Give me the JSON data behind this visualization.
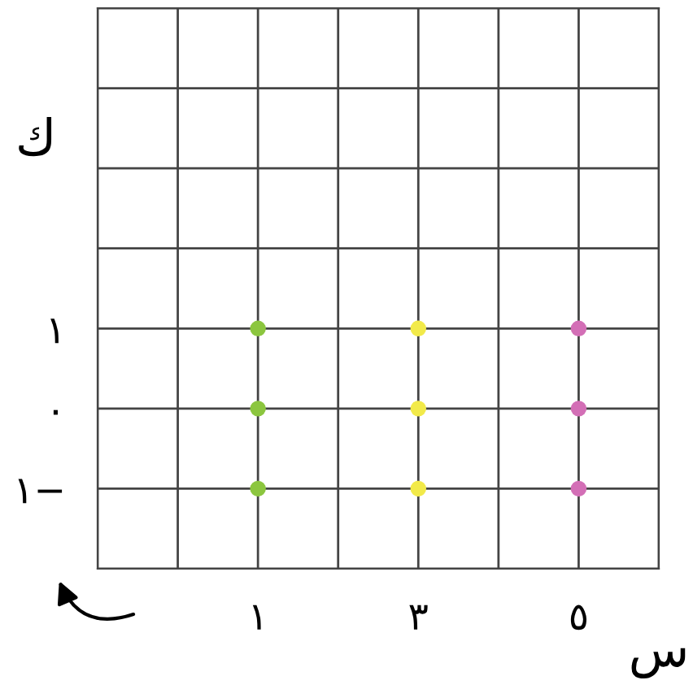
{
  "chart_data": {
    "type": "scatter",
    "xlabel": "س",
    "ylabel": "ك",
    "series": [
      {
        "color": "#8cc63f",
        "x": [
          1,
          1,
          1
        ],
        "values": [
          1,
          0,
          -1
        ]
      },
      {
        "color": "#f2ea4a",
        "x": [
          3,
          3,
          3
        ],
        "values": [
          1,
          0,
          -1
        ]
      },
      {
        "color": "#d36fb6",
        "x": [
          5,
          5,
          5
        ],
        "values": [
          1,
          0,
          -1
        ]
      }
    ],
    "xlim": [
      -1,
      6
    ],
    "ylim": [
      -2,
      5
    ],
    "xticks": [
      {
        "value": -1,
        "label": null
      },
      {
        "value": 0,
        "label": null
      },
      {
        "value": 1,
        "label": "١"
      },
      {
        "value": 2,
        "label": null
      },
      {
        "value": 3,
        "label": "٣"
      },
      {
        "value": 4,
        "label": null
      },
      {
        "value": 5,
        "label": "٥"
      },
      {
        "value": 6,
        "label": null
      }
    ],
    "yticks": [
      {
        "value": -2,
        "label": null
      },
      {
        "value": -1,
        "label": "١−"
      },
      {
        "value": 0,
        "label": "٠"
      },
      {
        "value": 1,
        "label": "١"
      },
      {
        "value": 2,
        "label": null
      },
      {
        "value": 3,
        "label": null
      },
      {
        "value": 4,
        "label": null
      },
      {
        "value": 5,
        "label": null
      }
    ],
    "grid": true,
    "marker": "circle"
  }
}
